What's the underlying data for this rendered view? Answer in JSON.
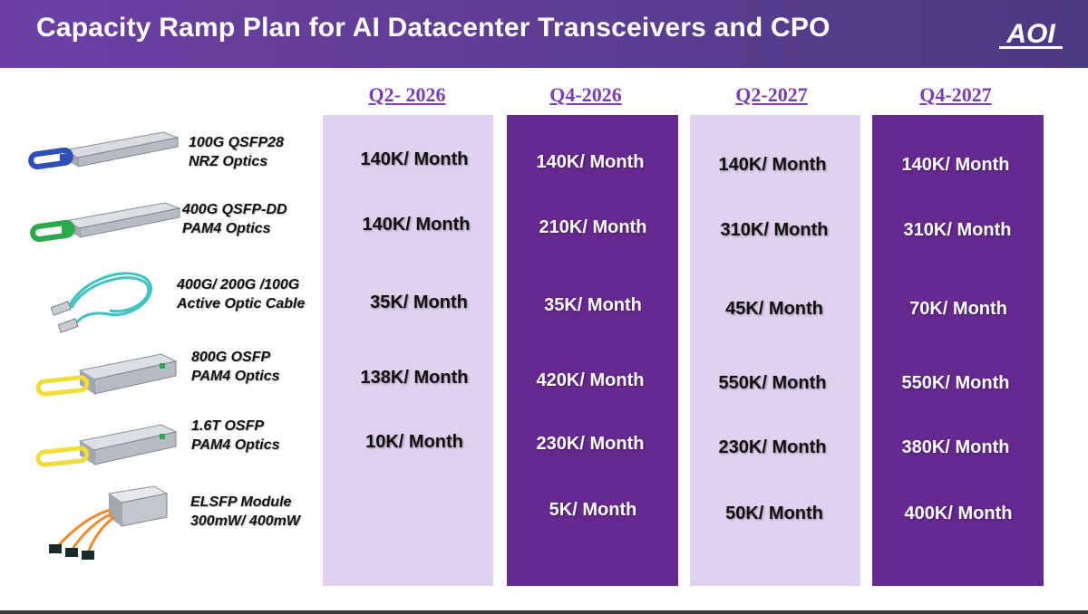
{
  "header": {
    "title": "Capacity Ramp Plan for AI Datacenter Transceivers and CPO",
    "logo_text": "AOI"
  },
  "colors": {
    "header_purple": "#5c3d91",
    "light_column": "#e0d1f1",
    "dark_column": "#66298f",
    "quarter_heading": "#7a3db3"
  },
  "quarters": [
    "Q2- 2026",
    "Q4-2026",
    "Q2-2027",
    "Q4-2027"
  ],
  "products": [
    {
      "line1": "100G QSFP28",
      "line2": "NRZ Optics",
      "icon": "qsfp28-transceiver-blue-pull-tab",
      "capacity": [
        "140K/ Month",
        "140K/ Month",
        "140K/ Month",
        "140K/ Month"
      ]
    },
    {
      "line1": "400G QSFP-DD",
      "line2": "PAM4 Optics",
      "icon": "qsfp-dd-transceiver-green-pull-tab",
      "capacity": [
        "140K/ Month",
        "210K/ Month",
        "310K/ Month",
        "310K/ Month"
      ]
    },
    {
      "line1": "400G/ 200G /100G",
      "line2": "Active Optic Cable",
      "icon": "active-optical-cable",
      "capacity": [
        "35K/ Month",
        "35K/ Month",
        "45K/ Month",
        "70K/ Month"
      ]
    },
    {
      "line1": "800G OSFP",
      "line2": "PAM4 Optics",
      "icon": "osfp-transceiver-yellow-pull-tab",
      "capacity": [
        "138K/ Month",
        "420K/ Month",
        "550K/ Month",
        "550K/ Month"
      ]
    },
    {
      "line1": "1.6T OSFP",
      "line2": "PAM4 Optics",
      "icon": "osfp-1-6t-transceiver-yellow-pull-tab",
      "capacity": [
        "10K/ Month",
        "230K/ Month",
        "230K/ Month",
        "380K/ Month"
      ]
    },
    {
      "line1": "ELSFP Module",
      "line2": "300mW/ 400mW",
      "icon": "elsfp-module-with-fibers",
      "capacity": [
        "",
        "5K/ Month",
        "50K/ Month",
        "400K/ Month"
      ]
    }
  ]
}
